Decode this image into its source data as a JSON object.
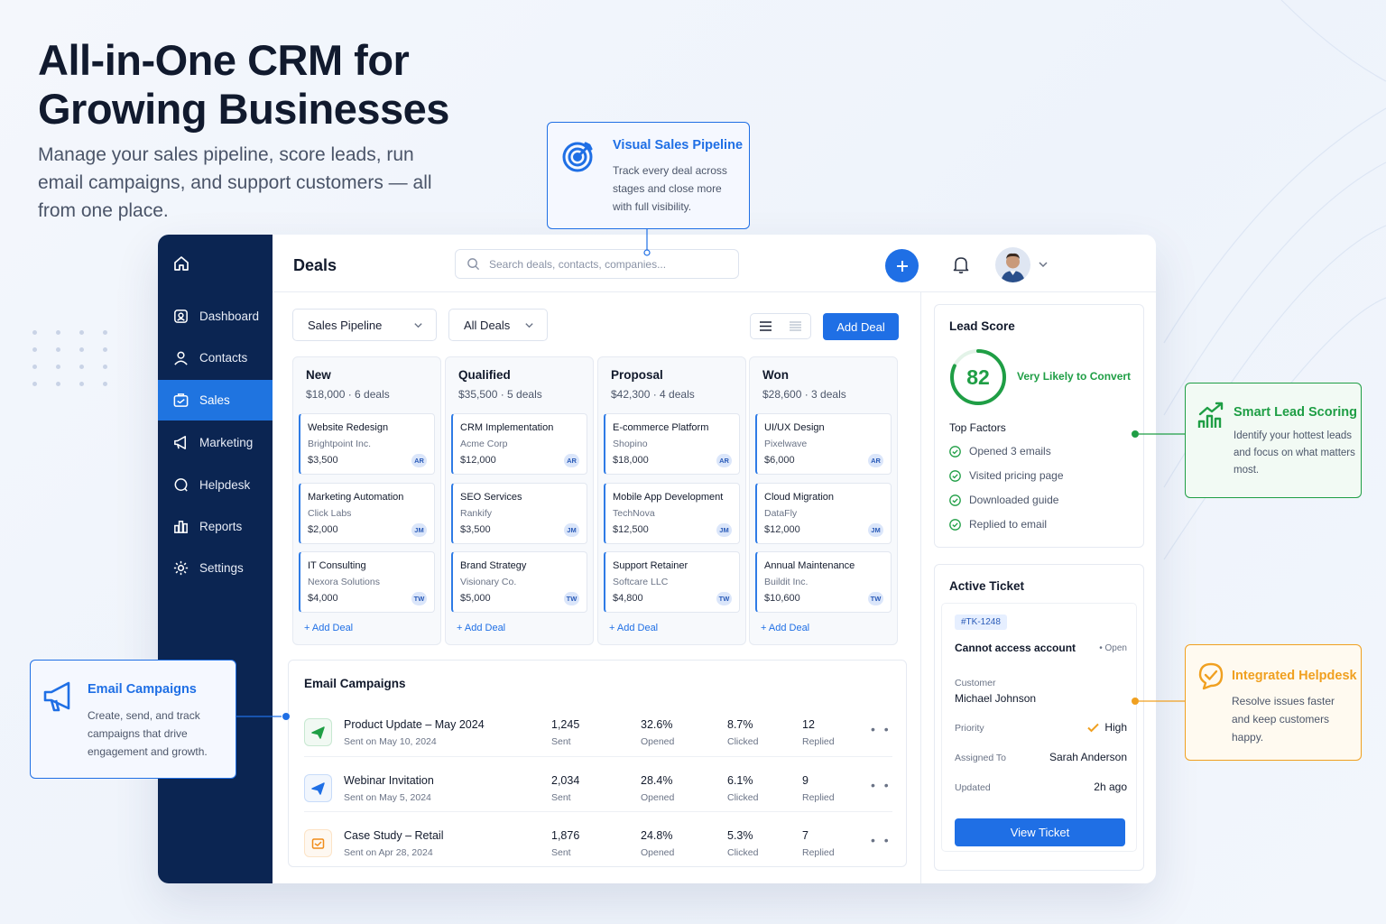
{
  "hero": {
    "title": "All-in-One CRM for Growing Businesses",
    "subtitle": "Manage your sales pipeline, score leads, run email campaigns, and support customers — all from one place."
  },
  "sidebar": {
    "items": [
      {
        "label": "Dashboard",
        "icon": "dashboard-icon"
      },
      {
        "label": "Contacts",
        "icon": "contacts-icon"
      },
      {
        "label": "Sales",
        "icon": "sales-icon"
      },
      {
        "label": "Marketing",
        "icon": "megaphone-icon"
      },
      {
        "label": "Helpdesk",
        "icon": "chat-icon"
      },
      {
        "label": "Reports",
        "icon": "reports-icon"
      },
      {
        "label": "Settings",
        "icon": "gear-icon"
      }
    ],
    "active": "Sales"
  },
  "topbar": {
    "title": "Deals",
    "search_placeholder": "Search deals, contacts, companies..."
  },
  "filters": {
    "pipeline": "Sales Pipeline",
    "scope": "All Deals",
    "add_deal": "Add Deal"
  },
  "pipeline": {
    "add_deal_link": "+ Add Deal",
    "columns": [
      {
        "name": "New",
        "meta": "$18,000 · 6 deals",
        "cards": [
          {
            "title": "Website Redesign",
            "company": "Brightpoint Inc.",
            "amount": "$3,500",
            "owner": "AR"
          },
          {
            "title": "Marketing Automation",
            "company": "Click Labs",
            "amount": "$2,000",
            "owner": "JM"
          },
          {
            "title": "IT Consulting",
            "company": "Nexora Solutions",
            "amount": "$4,000",
            "owner": "TW"
          }
        ]
      },
      {
        "name": "Qualified",
        "meta": "$35,500 · 5 deals",
        "cards": [
          {
            "title": "CRM Implementation",
            "company": "Acme Corp",
            "amount": "$12,000",
            "owner": "AR"
          },
          {
            "title": "SEO Services",
            "company": "Rankify",
            "amount": "$3,500",
            "owner": "JM"
          },
          {
            "title": "Brand Strategy",
            "company": "Visionary Co.",
            "amount": "$5,000",
            "owner": "TW"
          }
        ]
      },
      {
        "name": "Proposal",
        "meta": "$42,300 · 4 deals",
        "cards": [
          {
            "title": "E-commerce Platform",
            "company": "Shopino",
            "amount": "$18,000",
            "owner": "AR"
          },
          {
            "title": "Mobile App Development",
            "company": "TechNova",
            "amount": "$12,500",
            "owner": "JM"
          },
          {
            "title": "Support Retainer",
            "company": "Softcare LLC",
            "amount": "$4,800",
            "owner": "TW"
          }
        ]
      },
      {
        "name": "Won",
        "meta": "$28,600 · 3 deals",
        "cards": [
          {
            "title": "UI/UX Design",
            "company": "Pixelwave",
            "amount": "$6,000",
            "owner": "AR"
          },
          {
            "title": "Cloud Migration",
            "company": "DataFly",
            "amount": "$12,000",
            "owner": "JM"
          },
          {
            "title": "Annual Maintenance",
            "company": "Buildit Inc.",
            "amount": "$10,600",
            "owner": "TW"
          }
        ]
      }
    ]
  },
  "email_campaigns": {
    "title": "Email Campaigns",
    "rows": [
      {
        "name": "Product Update – May 2024",
        "date": "Sent on May 10, 2024",
        "sent": "1,245",
        "sent_l": "Sent",
        "opened": "32.6%",
        "opened_l": "Opened",
        "clicked": "8.7%",
        "clicked_l": "Clicked",
        "replied": "12",
        "replied_l": "Replied",
        "icon": "send-icon",
        "color": "#1f9e45"
      },
      {
        "name": "Webinar Invitation",
        "date": "Sent on May 5, 2024",
        "sent": "2,034",
        "sent_l": "Sent",
        "opened": "28.4%",
        "opened_l": "Opened",
        "clicked": "6.1%",
        "clicked_l": "Clicked",
        "replied": "9",
        "replied_l": "Replied",
        "icon": "send-icon",
        "color": "#1f6fe5"
      },
      {
        "name": "Case Study – Retail",
        "date": "Sent on Apr 28, 2024",
        "sent": "1,876",
        "sent_l": "Sent",
        "opened": "24.8%",
        "opened_l": "Opened",
        "clicked": "5.3%",
        "clicked_l": "Clicked",
        "replied": "7",
        "replied_l": "Replied",
        "icon": "mail-icon",
        "color": "#f08c1a"
      }
    ]
  },
  "lead_score": {
    "title": "Lead Score",
    "score": "82",
    "score_fraction": 0.82,
    "label": "Very Likely to Convert",
    "factors_title": "Top Factors",
    "factors": [
      "Opened 3 emails",
      "Visited pricing page",
      "Downloaded guide",
      "Replied to email"
    ]
  },
  "ticket": {
    "title": "Active Ticket",
    "id": "#TK-1248",
    "subject": "Cannot access account",
    "status": "• Open",
    "customer_label": "Customer",
    "customer": "Michael Johnson",
    "priority_label": "Priority",
    "priority": "High",
    "assigned_label": "Assigned To",
    "assigned": "Sarah Anderson",
    "updated_label": "Updated",
    "updated": "2h ago",
    "button": "View Ticket"
  },
  "callouts": {
    "pipeline": {
      "title": "Visual Sales Pipeline",
      "text": "Track every deal across stages and close more with full visibility.",
      "color": "#1f6fe5"
    },
    "email": {
      "title": "Email Campaigns",
      "text": "Create, send, and track campaigns that drive engagement and growth.",
      "color": "#1f6fe5"
    },
    "scoring": {
      "title": "Smart Lead Scoring",
      "text": "Identify your hottest leads and focus on what matters most.",
      "color": "#1f9e45"
    },
    "helpdesk": {
      "title": "Integrated Helpdesk",
      "text": "Resolve issues faster and keep customers happy.",
      "color": "#f0a020"
    }
  }
}
